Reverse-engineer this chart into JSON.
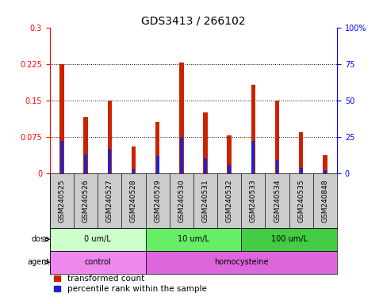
{
  "title": "GDS3413 / 266102",
  "categories": [
    "GSM240525",
    "GSM240526",
    "GSM240527",
    "GSM240528",
    "GSM240529",
    "GSM240530",
    "GSM240531",
    "GSM240532",
    "GSM240533",
    "GSM240534",
    "GSM240535",
    "GSM240848"
  ],
  "red_values": [
    0.225,
    0.115,
    0.15,
    0.055,
    0.105,
    0.228,
    0.125,
    0.078,
    0.182,
    0.15,
    0.085,
    0.038
  ],
  "blue_values_pct": [
    22,
    13,
    17,
    3,
    12,
    25,
    10,
    6,
    22,
    9,
    4,
    2
  ],
  "ylim_left": [
    0,
    0.3
  ],
  "ylim_right": [
    0,
    100
  ],
  "yticks_left": [
    0,
    0.075,
    0.15,
    0.225,
    0.3
  ],
  "ytick_labels_left": [
    "0",
    "0.075",
    "0.15",
    "0.225",
    "0.3"
  ],
  "yticks_right": [
    0,
    25,
    50,
    75,
    100
  ],
  "ytick_labels_right": [
    "0",
    "25",
    "50",
    "75",
    "100%"
  ],
  "dose_groups": [
    {
      "label": "0 um/L",
      "start": 0,
      "end": 4,
      "color": "#ccffcc"
    },
    {
      "label": "10 um/L",
      "start": 4,
      "end": 8,
      "color": "#66ee66"
    },
    {
      "label": "100 um/L",
      "start": 8,
      "end": 12,
      "color": "#44cc44"
    }
  ],
  "agent_groups": [
    {
      "label": "control",
      "start": 0,
      "end": 4,
      "color": "#ee88ee"
    },
    {
      "label": "homocysteine",
      "start": 4,
      "end": 12,
      "color": "#dd66dd"
    }
  ],
  "dose_label": "dose",
  "agent_label": "agent",
  "legend_red": "transformed count",
  "legend_blue": "percentile rank within the sample",
  "red_color": "#cc2200",
  "blue_color": "#2222cc",
  "xlabel_bg_color": "#cccccc",
  "title_fontsize": 10,
  "tick_fontsize": 7,
  "xlabel_fontsize": 6.5,
  "label_fontsize": 8,
  "legend_fontsize": 7.5
}
